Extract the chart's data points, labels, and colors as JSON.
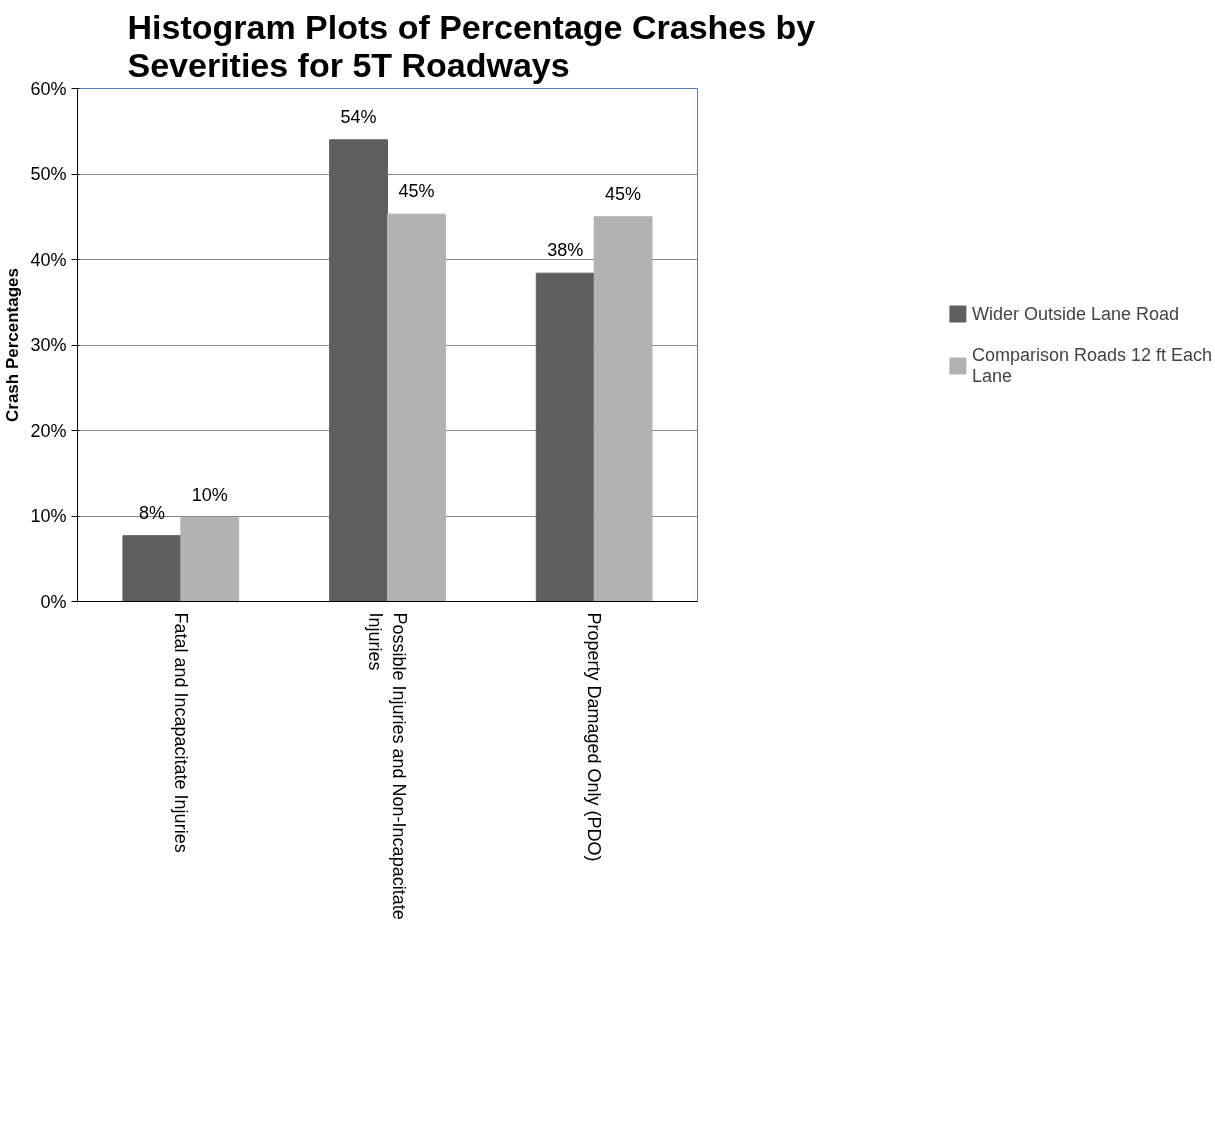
{
  "chart_data": {
    "type": "bar",
    "title": "Histogram Plots of Percentage Crashes by Severities for 5T Roadways",
    "ylabel": "Crash Percentages",
    "categories": [
      "Fatal and Incapacitate Injuries",
      "Possible Injuries and Non-Incapacitate Injuries",
      "Property Damaged Only  (PDO)"
    ],
    "series": [
      {
        "name": "Wider Outside Lane Road",
        "color": "#5f5f5f",
        "values": [
          7.7,
          54.0,
          38.4
        ],
        "value_labels": [
          "8%",
          "54%",
          "38%"
        ]
      },
      {
        "name": "Comparison Roads 12 ft Each Lane",
        "color": "#b2b2b2",
        "values": [
          9.8,
          45.3,
          45.0
        ],
        "value_labels": [
          "10%",
          "45%",
          "45%"
        ]
      }
    ],
    "ylim": [
      0,
      60
    ],
    "yticks": [
      {
        "value": 0,
        "label": "0%"
      },
      {
        "value": 10,
        "label": "10%"
      },
      {
        "value": 20,
        "label": "20%"
      },
      {
        "value": 30,
        "label": "30%"
      },
      {
        "value": 40,
        "label": "40%"
      },
      {
        "value": 50,
        "label": "50%"
      },
      {
        "value": 60,
        "label": "60%"
      }
    ],
    "grid": "y",
    "legend": "right"
  }
}
